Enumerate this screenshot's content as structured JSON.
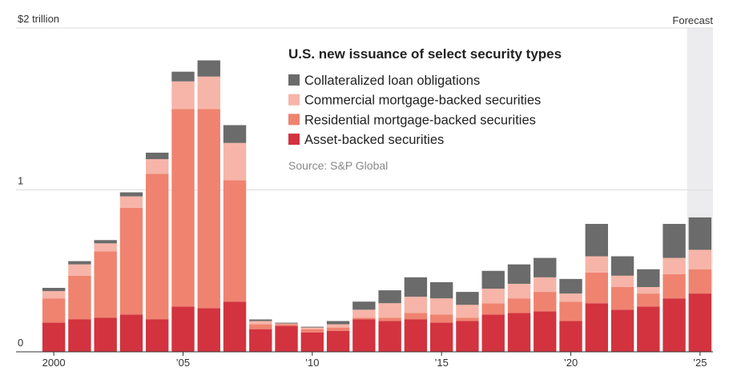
{
  "chart_data": {
    "type": "stacked_bar",
    "title": "U.S. new issuance of select security types",
    "source": "Source: S&P Global",
    "forecast": {
      "label": "Forecast",
      "from": 2025
    },
    "x": [
      2000,
      2001,
      2002,
      2003,
      2004,
      2005,
      2006,
      2007,
      2008,
      2009,
      2010,
      2011,
      2012,
      2013,
      2014,
      2015,
      2016,
      2017,
      2018,
      2019,
      2020,
      2021,
      2022,
      2023,
      2024,
      2025
    ],
    "xlim": [
      1999.5,
      2025.5
    ],
    "xticks": [
      {
        "value": 2000,
        "label": "2000"
      },
      {
        "value": 2005,
        "label": "’05"
      },
      {
        "value": 2010,
        "label": "’10"
      },
      {
        "value": 2015,
        "label": "’15"
      },
      {
        "value": 2020,
        "label": "’20"
      },
      {
        "value": 2025,
        "label": "’25"
      }
    ],
    "ylim": [
      0,
      2
    ],
    "yticks": [
      0,
      1,
      {
        "value": 2,
        "label": "$2 trillion"
      }
    ],
    "grid": true,
    "series": [
      {
        "name": "Collateralized loan obligations",
        "color": "#6b6b6b",
        "values": [
          0.02,
          0.02,
          0.02,
          0.025,
          0.04,
          0.06,
          0.1,
          0.11,
          0.01,
          0.005,
          0.005,
          0.02,
          0.05,
          0.08,
          0.12,
          0.1,
          0.08,
          0.11,
          0.12,
          0.12,
          0.09,
          0.2,
          0.12,
          0.11,
          0.21,
          0.2
        ]
      },
      {
        "name": "Commercial mortgage-backed securities",
        "color": "#f6b5a8",
        "values": [
          0.045,
          0.07,
          0.05,
          0.07,
          0.09,
          0.17,
          0.2,
          0.23,
          0.02,
          0.005,
          0.01,
          0.02,
          0.05,
          0.09,
          0.1,
          0.1,
          0.08,
          0.09,
          0.09,
          0.09,
          0.05,
          0.1,
          0.07,
          0.04,
          0.1,
          0.12
        ]
      },
      {
        "name": "Residential mortgage-backed securities",
        "color": "#ef8370",
        "values": [
          0.15,
          0.27,
          0.41,
          0.66,
          0.9,
          1.22,
          1.23,
          0.75,
          0.03,
          0.01,
          0.02,
          0.02,
          0.01,
          0.02,
          0.04,
          0.05,
          0.02,
          0.07,
          0.09,
          0.12,
          0.12,
          0.19,
          0.14,
          0.08,
          0.15,
          0.15
        ]
      },
      {
        "name": "Asset-backed securities",
        "color": "#d2333f",
        "values": [
          0.18,
          0.2,
          0.21,
          0.23,
          0.2,
          0.28,
          0.27,
          0.31,
          0.14,
          0.16,
          0.12,
          0.13,
          0.2,
          0.19,
          0.2,
          0.18,
          0.19,
          0.23,
          0.24,
          0.25,
          0.19,
          0.3,
          0.26,
          0.28,
          0.33,
          0.36
        ]
      }
    ]
  }
}
